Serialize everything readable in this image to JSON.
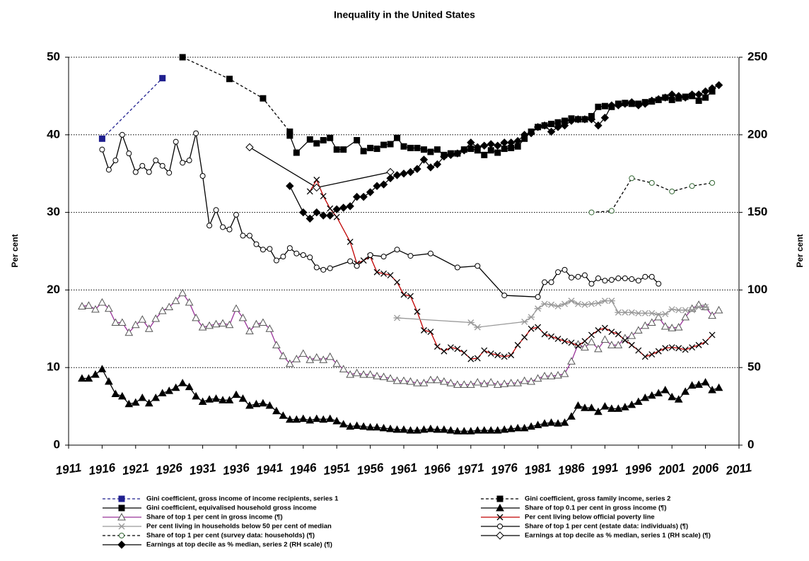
{
  "chart_data": {
    "type": "line",
    "title": "Inequality in the United States",
    "ylabel": "Per cent",
    "y2label": "Per cent",
    "xlim": [
      1911,
      2011
    ],
    "xticks": [
      1911,
      1916,
      1921,
      1926,
      1931,
      1936,
      1941,
      1946,
      1951,
      1956,
      1961,
      1966,
      1971,
      1976,
      1981,
      1986,
      1991,
      1996,
      2001,
      2006,
      2011
    ],
    "ylim": [
      0,
      50
    ],
    "yticks": [
      0,
      10,
      20,
      30,
      40,
      50
    ],
    "y2lim": [
      0,
      250
    ],
    "y2ticks": [
      0,
      50,
      100,
      150,
      200,
      250
    ],
    "grid": true,
    "series": [
      {
        "name": "Gini coefficient, gross income of income recipients, series 1",
        "color": "#1f1f8f",
        "marker": "square",
        "marker_open": false,
        "dash": true,
        "x": [
          1916,
          1925
        ],
        "values": [
          39.5,
          47.3
        ]
      },
      {
        "name": "Gini coefficient, gross family income, series 2",
        "color": "#000000",
        "marker": "square",
        "marker_open": false,
        "dash": true,
        "x": [
          1928,
          1935,
          1940,
          1944
        ],
        "values": [
          50.0,
          47.2,
          44.7,
          40.4
        ]
      },
      {
        "name": "Gini coefficient, equivalised household gross income",
        "color": "#000000",
        "marker": "square",
        "marker_open": false,
        "dash": false,
        "x": [
          1944,
          1945,
          1947,
          1948,
          1949,
          1950,
          1951,
          1952,
          1954,
          1955,
          1956,
          1957,
          1958,
          1959,
          1960,
          1961,
          1962,
          1963,
          1964,
          1965,
          1966,
          1967,
          1968,
          1969,
          1970,
          1971,
          1972,
          1973,
          1974,
          1975,
          1976,
          1977,
          1978,
          1979,
          1980,
          1981,
          1982,
          1983,
          1984,
          1985,
          1986,
          1987,
          1988,
          1989,
          1990,
          1991,
          1992,
          1993,
          1994,
          1995,
          1996,
          1997,
          1998,
          1999,
          2000,
          2001,
          2002,
          2003,
          2004,
          2005,
          2006,
          2007
        ],
        "values": [
          39.9,
          37.7,
          39.4,
          38.9,
          39.3,
          39.6,
          38.1,
          38.1,
          39.3,
          37.9,
          38.3,
          38.2,
          38.7,
          38.8,
          39.6,
          38.5,
          38.3,
          38.3,
          38.1,
          37.8,
          38.1,
          37.4,
          37.6,
          37.6,
          38.1,
          38.2,
          38.0,
          37.4,
          38.0,
          37.7,
          38.2,
          38.3,
          38.5,
          39.5,
          40.4,
          41.0,
          41.2,
          41.4,
          41.6,
          41.8,
          42.1,
          42.0,
          42.0,
          42.4,
          43.6,
          43.7,
          43.6,
          44.0,
          44.1,
          44.0,
          44.0,
          44.2,
          44.3,
          44.5,
          44.8,
          44.5,
          44.7,
          44.9,
          45.0,
          44.4,
          44.8,
          45.6
        ]
      },
      {
        "name": "Share of top 0.1 per cent in gross income (¶)",
        "color": "#000000",
        "marker": "triangle",
        "marker_open": false,
        "dash": false,
        "x": [
          1913,
          1914,
          1915,
          1916,
          1917,
          1918,
          1919,
          1920,
          1921,
          1922,
          1923,
          1924,
          1925,
          1926,
          1927,
          1928,
          1929,
          1930,
          1931,
          1932,
          1933,
          1934,
          1935,
          1936,
          1937,
          1938,
          1939,
          1940,
          1941,
          1942,
          1943,
          1944,
          1945,
          1946,
          1947,
          1948,
          1949,
          1950,
          1951,
          1952,
          1953,
          1954,
          1955,
          1956,
          1957,
          1958,
          1959,
          1960,
          1961,
          1962,
          1963,
          1964,
          1965,
          1966,
          1967,
          1968,
          1969,
          1970,
          1971,
          1972,
          1973,
          1974,
          1975,
          1976,
          1977,
          1978,
          1979,
          1980,
          1981,
          1982,
          1983,
          1984,
          1985,
          1986,
          1987,
          1988,
          1989,
          1990,
          1991,
          1992,
          1993,
          1994,
          1995,
          1996,
          1997,
          1998,
          1999,
          2000,
          2001,
          2002,
          2003,
          2004,
          2005,
          2006,
          2007,
          2008
        ],
        "values": [
          8.6,
          8.6,
          9.1,
          9.8,
          8.2,
          6.6,
          6.3,
          5.3,
          5.5,
          6.1,
          5.4,
          6.1,
          6.7,
          7.0,
          7.4,
          8.0,
          7.5,
          6.3,
          5.6,
          5.9,
          6.0,
          5.8,
          5.8,
          6.5,
          6.0,
          5.1,
          5.3,
          5.4,
          5.1,
          4.4,
          3.8,
          3.3,
          3.3,
          3.4,
          3.2,
          3.4,
          3.3,
          3.4,
          3.1,
          2.7,
          2.4,
          2.5,
          2.4,
          2.3,
          2.3,
          2.2,
          2.1,
          2.0,
          2.0,
          1.9,
          1.9,
          2.0,
          2.1,
          2.0,
          2.0,
          1.9,
          1.8,
          1.8,
          1.8,
          1.9,
          1.9,
          1.9,
          1.9,
          2.0,
          2.1,
          2.2,
          2.2,
          2.4,
          2.6,
          2.8,
          2.9,
          2.8,
          2.9,
          3.7,
          5.1,
          4.8,
          4.8,
          4.3,
          5.0,
          4.7,
          4.7,
          4.9,
          5.2,
          5.6,
          6.1,
          6.4,
          6.7,
          7.1,
          6.2,
          5.9,
          6.9,
          7.7,
          7.8,
          8.1,
          7.1,
          7.4
        ]
      },
      {
        "name": "Share of top 1 per cent in gross income (¶)",
        "color": "#993399",
        "marker": "triangle",
        "marker_open": true,
        "marker_color": "#555555",
        "dash": false,
        "x": [
          1913,
          1914,
          1915,
          1916,
          1917,
          1918,
          1919,
          1920,
          1921,
          1922,
          1923,
          1924,
          1925,
          1926,
          1927,
          1928,
          1929,
          1930,
          1931,
          1932,
          1933,
          1934,
          1935,
          1936,
          1937,
          1938,
          1939,
          1940,
          1941,
          1942,
          1943,
          1944,
          1945,
          1946,
          1947,
          1948,
          1949,
          1950,
          1951,
          1952,
          1953,
          1954,
          1955,
          1956,
          1957,
          1958,
          1959,
          1960,
          1961,
          1962,
          1963,
          1964,
          1965,
          1966,
          1967,
          1968,
          1969,
          1970,
          1971,
          1972,
          1973,
          1974,
          1975,
          1976,
          1977,
          1978,
          1979,
          1980,
          1981,
          1982,
          1983,
          1984,
          1985,
          1986,
          1987,
          1988,
          1989,
          1990,
          1991,
          1992,
          1993,
          1994,
          1995,
          1996,
          1997,
          1998,
          1999,
          2000,
          2001,
          2002,
          2003,
          2004,
          2005,
          2006,
          2007,
          2008
        ],
        "values": [
          17.9,
          18.0,
          17.5,
          18.4,
          17.6,
          15.8,
          15.8,
          14.5,
          15.5,
          16.2,
          15.0,
          16.3,
          17.3,
          17.8,
          18.6,
          19.6,
          18.4,
          16.4,
          15.2,
          15.4,
          15.6,
          15.7,
          15.5,
          17.6,
          16.4,
          14.7,
          15.6,
          15.8,
          15.0,
          12.9,
          11.5,
          10.5,
          11.1,
          11.8,
          11.0,
          11.3,
          11.0,
          11.4,
          10.5,
          9.8,
          9.1,
          9.3,
          9.1,
          9.1,
          8.9,
          8.8,
          8.6,
          8.3,
          8.3,
          8.2,
          8.0,
          8.0,
          8.4,
          8.4,
          8.2,
          8.0,
          7.8,
          7.8,
          7.8,
          8.1,
          7.9,
          8.1,
          7.8,
          7.9,
          8.0,
          8.0,
          8.3,
          8.2,
          8.6,
          8.9,
          8.9,
          9.0,
          9.2,
          10.8,
          13.0,
          12.6,
          13.3,
          12.4,
          13.6,
          12.9,
          12.9,
          13.8,
          14.1,
          14.8,
          15.4,
          15.8,
          16.5,
          15.3,
          15.1,
          15.2,
          16.5,
          17.6,
          18.1,
          17.8,
          16.7,
          17.4
        ]
      },
      {
        "name": "Per cent living below official poverty line",
        "color": "#c00000",
        "marker": "x",
        "marker_open": false,
        "marker_color": "#000000",
        "dash": false,
        "x": [
          1947,
          1948,
          1949,
          1950,
          1951,
          1953,
          1954,
          1955,
          1956,
          1957,
          1958,
          1959,
          1960,
          1961,
          1962,
          1963,
          1964,
          1965,
          1966,
          1967,
          1968,
          1969,
          1970,
          1971,
          1972,
          1973,
          1974,
          1975,
          1976,
          1977,
          1978,
          1979,
          1980,
          1981,
          1982,
          1983,
          1984,
          1985,
          1986,
          1987,
          1988,
          1989,
          1990,
          1991,
          1992,
          1993,
          1994,
          1995,
          1996,
          1997,
          1998,
          1999,
          2000,
          2001,
          2002,
          2003,
          2004,
          2005,
          2006,
          2007
        ],
        "values": [
          32.7,
          34.2,
          32.1,
          30.5,
          29.4,
          26.2,
          23.4,
          23.8,
          24.3,
          22.3,
          22.1,
          21.9,
          21.0,
          19.4,
          19.2,
          17.2,
          14.8,
          14.6,
          12.7,
          12.1,
          12.6,
          12.4,
          11.9,
          11.1,
          11.2,
          12.2,
          11.8,
          11.6,
          11.4,
          11.6,
          12.9,
          13.9,
          15.0,
          15.2,
          14.3,
          14.0,
          13.7,
          13.4,
          13.2,
          12.8,
          13.4,
          14.2,
          14.8,
          15.1,
          14.6,
          14.3,
          13.5,
          12.9,
          12.2,
          11.4,
          11.7,
          12.1,
          12.5,
          12.6,
          12.5,
          12.3,
          12.6,
          12.9,
          13.3,
          14.2
        ]
      },
      {
        "name": "Per cent living in households below 50 per cent of median",
        "color": "#999999",
        "marker": "asterisk",
        "marker_open": false,
        "dash": false,
        "x": [
          1960,
          1971,
          1972,
          1979,
          1980,
          1981,
          1982,
          1983,
          1984,
          1985,
          1986,
          1987,
          1988,
          1989,
          1990,
          1991,
          1992,
          1993,
          1994,
          1995,
          1996,
          1997,
          1998,
          1999,
          2000,
          2001,
          2002,
          2003,
          2004,
          2005,
          2006
        ],
        "values": [
          16.4,
          15.8,
          15.2,
          15.9,
          16.5,
          17.6,
          18.2,
          18.1,
          17.9,
          18.2,
          18.6,
          18.2,
          18.1,
          18.2,
          18.3,
          18.6,
          18.6,
          17.1,
          17.1,
          17.1,
          17.0,
          17.0,
          17.0,
          16.8,
          16.9,
          17.5,
          17.4,
          17.4,
          17.4,
          17.8,
          17.8
        ]
      },
      {
        "name": "Share of top 1 per cent (estate data: individuals) (¶)",
        "color": "#000000",
        "marker": "circle",
        "marker_open": true,
        "dash": false,
        "x": [
          1916,
          1917,
          1918,
          1919,
          1920,
          1921,
          1922,
          1923,
          1924,
          1925,
          1926,
          1927,
          1928,
          1929,
          1930,
          1931,
          1932,
          1933,
          1934,
          1935,
          1936,
          1937,
          1938,
          1939,
          1940,
          1941,
          1942,
          1943,
          1944,
          1945,
          1946,
          1947,
          1948,
          1949,
          1950,
          1953,
          1954,
          1956,
          1958,
          1960,
          1962,
          1965,
          1969,
          1972,
          1976,
          1981,
          1982,
          1983,
          1984,
          1985,
          1986,
          1987,
          1988,
          1989,
          1990,
          1991,
          1992,
          1993,
          1994,
          1995,
          1996,
          1997,
          1998,
          1999
        ],
        "values": [
          38.1,
          35.5,
          36.7,
          40.0,
          37.6,
          35.2,
          36.0,
          35.2,
          36.7,
          36.0,
          35.1,
          39.1,
          36.4,
          36.7,
          40.2,
          34.7,
          28.3,
          30.3,
          28.1,
          27.8,
          29.7,
          27.0,
          27.0,
          25.9,
          25.2,
          25.3,
          23.8,
          24.3,
          25.4,
          24.7,
          24.5,
          24.2,
          22.9,
          22.6,
          22.8,
          23.7,
          23.1,
          24.5,
          24.3,
          25.2,
          24.4,
          24.7,
          22.9,
          23.1,
          19.3,
          19.1,
          21.0,
          21.0,
          22.3,
          22.6,
          21.6,
          21.7,
          21.9,
          20.8,
          21.5,
          21.2,
          21.3,
          21.5,
          21.5,
          21.4,
          21.2,
          21.7,
          21.7,
          20.8
        ]
      },
      {
        "name": "Share of top 1 per cent (survey data: households) (¶)",
        "color": "#000000",
        "marker": "circle",
        "marker_open": true,
        "marker_color": "#336633",
        "dash": true,
        "x": [
          1989,
          1992,
          1995,
          1998,
          2001,
          2004,
          2007
        ],
        "values": [
          30.0,
          30.2,
          34.4,
          33.8,
          32.7,
          33.4,
          33.8
        ]
      },
      {
        "name": "Earnings at top decile as % median, series 1 (RH scale) (¶)",
        "color": "#000000",
        "marker": "diamond",
        "marker_open": true,
        "dash": false,
        "axis": "y2",
        "x": [
          1938,
          1948,
          1959
        ],
        "values": [
          192,
          166,
          176
        ]
      },
      {
        "name": "Earnings at top decile as % median, series 2 (RH scale) (¶)",
        "color": "#000000",
        "marker": "diamond",
        "marker_open": false,
        "dash": false,
        "axis": "y2",
        "x": [
          1944,
          1946,
          1947,
          1948,
          1949,
          1950,
          1951,
          1952,
          1953,
          1954,
          1955,
          1956,
          1957,
          1958,
          1959,
          1960,
          1961,
          1962,
          1963,
          1964,
          1965,
          1966,
          1967,
          1968,
          1969,
          1970,
          1971,
          1972,
          1973,
          1974,
          1975,
          1976,
          1977,
          1978,
          1979,
          1980,
          1981,
          1982,
          1983,
          1984,
          1985,
          1986,
          1987,
          1988,
          1989,
          1990,
          1991,
          1992,
          1993,
          1994,
          1995,
          1996,
          1997,
          1998,
          1999,
          2000,
          2001,
          2002,
          2003,
          2004,
          2005,
          2006,
          2007,
          2008
        ],
        "values": [
          167,
          150,
          146,
          150,
          148,
          148,
          152,
          153,
          154,
          160,
          160,
          163,
          167,
          168,
          172,
          174,
          175,
          176,
          178,
          184,
          179,
          181,
          186,
          187,
          188,
          190,
          195,
          192,
          193,
          194,
          193,
          195,
          195,
          196,
          200,
          201,
          205,
          206,
          202,
          205,
          206,
          209,
          210,
          210,
          210,
          206,
          211,
          219,
          219,
          220,
          221,
          219,
          220,
          222,
          223,
          224,
          226,
          225,
          224,
          226,
          226,
          228,
          230,
          232
        ]
      }
    ]
  }
}
